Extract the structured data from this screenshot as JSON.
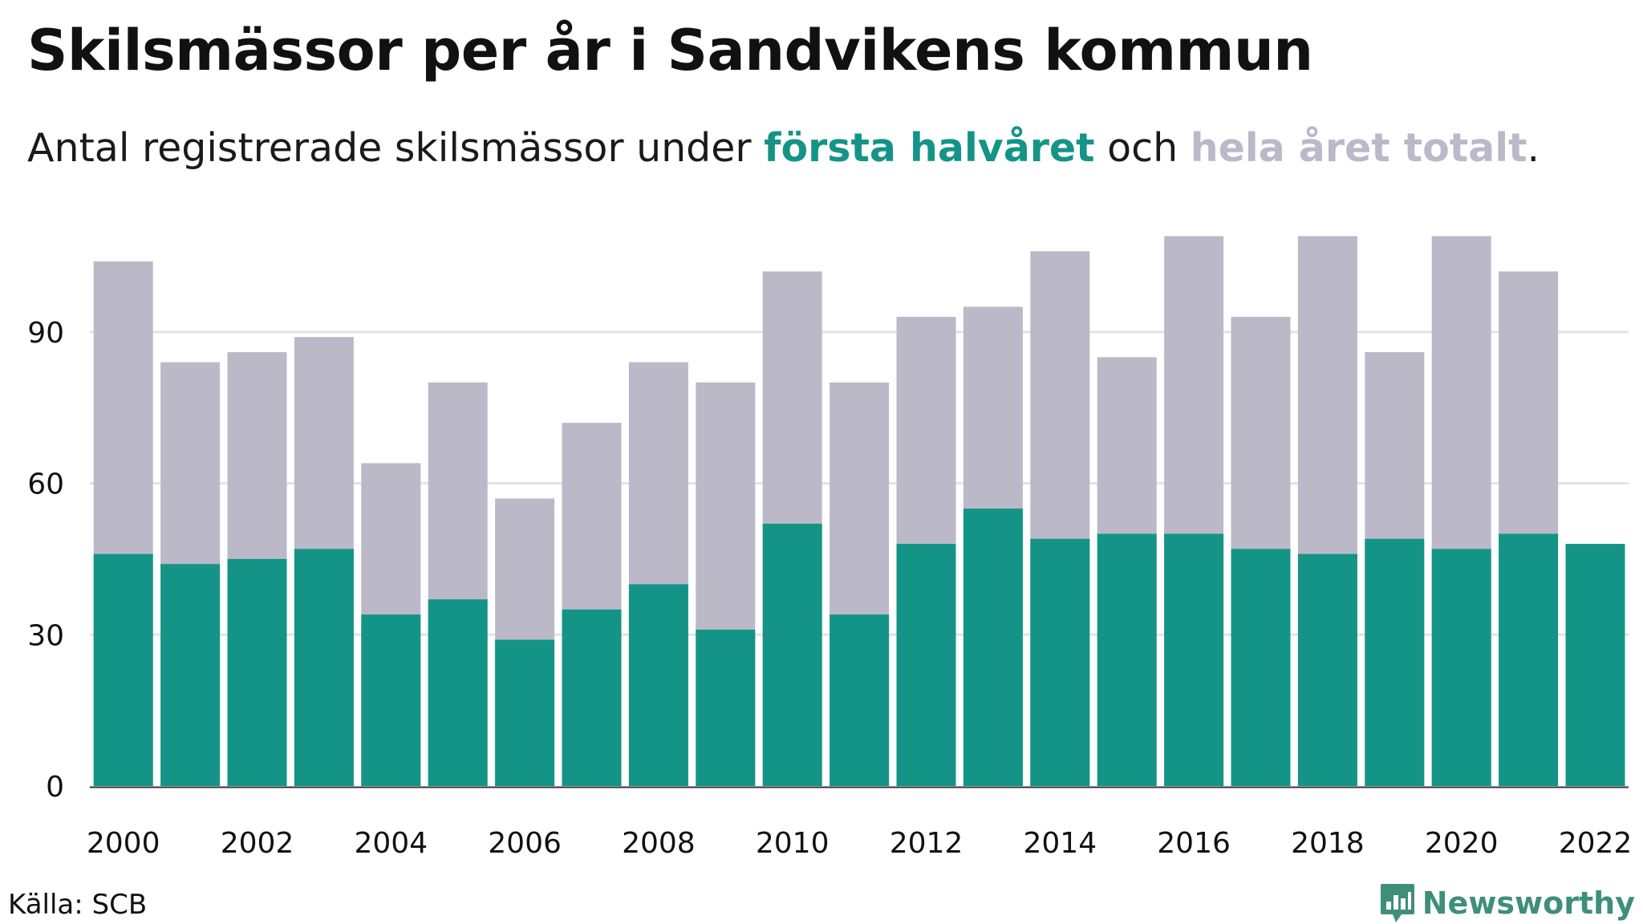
{
  "title": "Skilsmässor per år i Sandvikens kommun",
  "subtitle": {
    "prefix": "Antal registrerade skilsmässor under ",
    "highlight1": "första halvåret",
    "middle": " och ",
    "highlight2": "hela året totalt",
    "suffix": "."
  },
  "source": "Källa: SCB",
  "brand": "Newsworthy",
  "colors": {
    "first_half": "#149487",
    "total": "#bbb9c8",
    "grid": "#e3e3e3",
    "brand": "#3e8f79"
  },
  "chart_data": {
    "type": "bar",
    "stacking": "overlay",
    "categories": [
      2000,
      2001,
      2002,
      2003,
      2004,
      2005,
      2006,
      2007,
      2008,
      2009,
      2010,
      2011,
      2012,
      2013,
      2014,
      2015,
      2016,
      2017,
      2018,
      2019,
      2020,
      2021,
      2022
    ],
    "series": [
      {
        "name": "hela året totalt",
        "values": [
          104,
          84,
          86,
          89,
          64,
          80,
          57,
          72,
          84,
          80,
          102,
          80,
          93,
          95,
          106,
          85,
          109,
          93,
          109,
          86,
          109,
          102,
          null
        ]
      },
      {
        "name": "första halvåret",
        "values": [
          46,
          44,
          45,
          47,
          34,
          37,
          29,
          35,
          40,
          31,
          52,
          34,
          48,
          55,
          49,
          50,
          50,
          47,
          46,
          49,
          47,
          50,
          48
        ]
      }
    ],
    "yticks": [
      0,
      30,
      60,
      90
    ],
    "xticks": [
      2000,
      2002,
      2004,
      2006,
      2008,
      2010,
      2012,
      2014,
      2016,
      2018,
      2020,
      2022
    ],
    "ylim": [
      0,
      109
    ],
    "grid": true,
    "xlabel": "",
    "ylabel": ""
  }
}
